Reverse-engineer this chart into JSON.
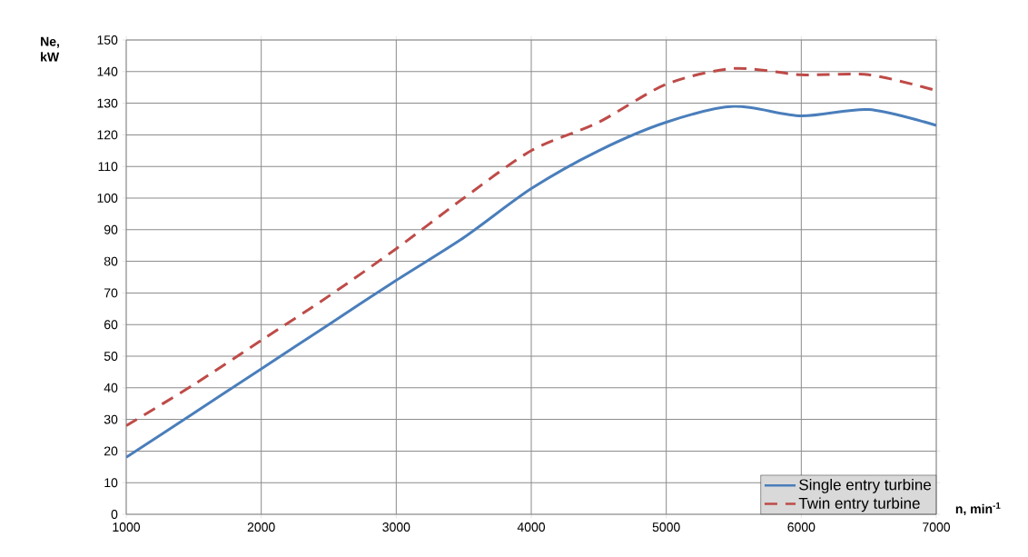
{
  "chart_data": {
    "type": "line",
    "xlabel": "**n, min$^{-1}$**",
    "ylabel": "**Ne, kW**",
    "x": [
      1000,
      1500,
      2000,
      2500,
      3000,
      3500,
      4000,
      4500,
      5000,
      5500,
      6000,
      6500,
      7000
    ],
    "series": [
      {
        "name": "Single entry turbine",
        "color": "#4a7ebb",
        "line_style": "solid",
        "values": [
          18,
          32,
          46,
          60,
          74,
          87.5,
          103,
          115,
          124,
          129,
          126,
          128,
          123
        ]
      },
      {
        "name": "Twin entry turbine",
        "color": "#be4b48",
        "line_style": "dashed",
        "values": [
          28,
          41,
          55,
          69,
          84,
          100,
          115,
          124,
          136,
          141,
          139,
          139,
          134
        ]
      }
    ],
    "xlim": [
      1000,
      7000
    ],
    "ylim": [
      0,
      150
    ],
    "xticks": [
      1000,
      2000,
      3000,
      4000,
      5000,
      6000,
      7000
    ],
    "yticks": [
      0,
      10,
      20,
      30,
      40,
      50,
      60,
      70,
      80,
      90,
      100,
      110,
      120,
      130,
      140,
      150
    ],
    "grid": true,
    "legend": "bottom right",
    "marker": "none"
  }
}
